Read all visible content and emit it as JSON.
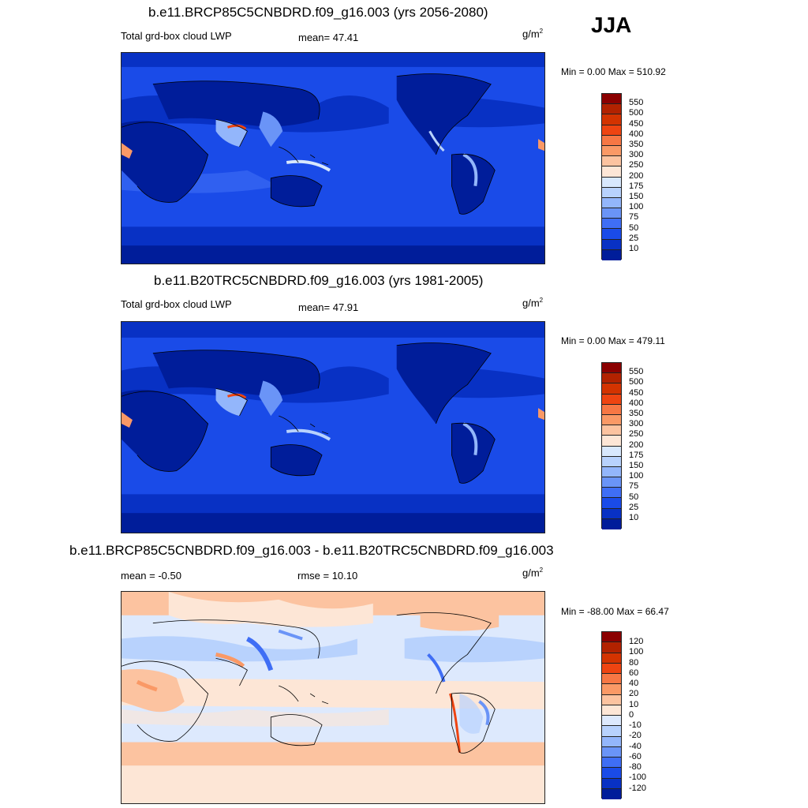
{
  "season": "JJA",
  "units_base": "g/m",
  "units_exp": "2",
  "panels": [
    {
      "title": "b.e11.BRCP85C5CNBDRD.f09_g16.003 (yrs 2056-2080)",
      "left_label": "Total grd-box cloud LWP",
      "mid_label": "mean=  47.41",
      "minmax": "Min =   0.00 Max = 510.92",
      "kind": "abs"
    },
    {
      "title": "b.e11.B20TRC5CNBDRD.f09_g16.003 (yrs 1981-2005)",
      "left_label": "Total grd-box cloud LWP",
      "mid_label": "mean=  47.91",
      "minmax": "Min =   0.00 Max = 479.11",
      "kind": "abs"
    },
    {
      "title": "b.e11.BRCP85C5CNBDRD.f09_g16.003 - b.e11.B20TRC5CNBDRD.f09_g16.003",
      "left_label": "mean =  -0.50",
      "mid_label": "rmse =  10.10",
      "minmax": "Min = -88.00 Max =  66.47",
      "kind": "diff"
    }
  ],
  "colorbar_abs": {
    "labels": [
      "550",
      "500",
      "450",
      "400",
      "350",
      "300",
      "250",
      "200",
      "175",
      "150",
      "100",
      "75",
      "50",
      "25",
      "10"
    ],
    "colors": [
      "#8b0000",
      "#b22200",
      "#d33300",
      "#ee4411",
      "#f77744",
      "#fa9966",
      "#fcc3a0",
      "#fde6d6",
      "#d8e8fd",
      "#b8d2fd",
      "#93b6fb",
      "#6a94f7",
      "#3f6ef5",
      "#1a4be8",
      "#0831c4",
      "#001d9a"
    ]
  },
  "colorbar_diff": {
    "labels": [
      "120",
      "100",
      "80",
      "60",
      "40",
      "20",
      "10",
      "0",
      "-10",
      "-20",
      "-40",
      "-60",
      "-80",
      "-100",
      "-120"
    ],
    "colors": [
      "#8b0000",
      "#b22200",
      "#d33300",
      "#ee4411",
      "#f77744",
      "#fa9966",
      "#fcc3a0",
      "#fde6d6",
      "#dde9fd",
      "#b8d2fd",
      "#93b6fb",
      "#6a94f7",
      "#3f6ef5",
      "#1a4be8",
      "#0831c4",
      "#001d9a"
    ]
  }
}
